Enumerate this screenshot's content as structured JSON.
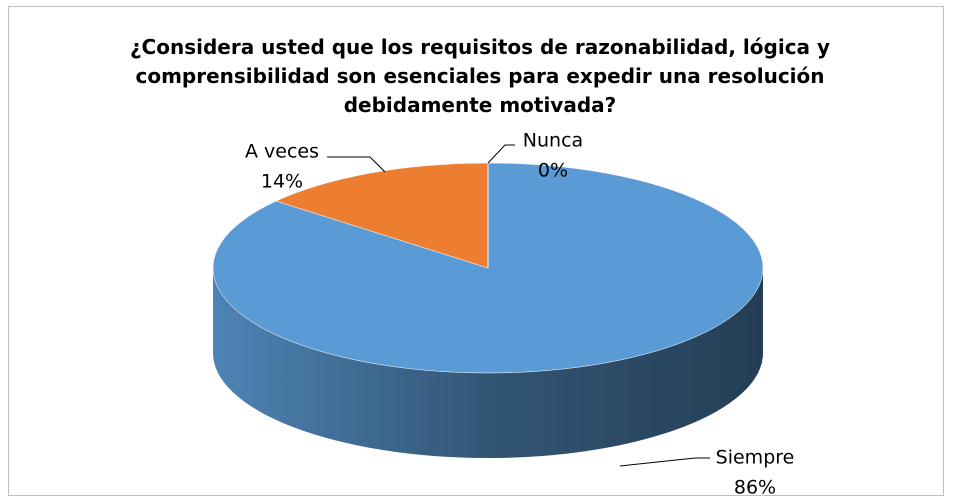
{
  "chart_data": {
    "type": "pie3d",
    "title": "¿Considera usted que los requisitos de razonabilidad,  lógica y comprensibilidad son esenciales  para expedir una resolución debidamente motivada?",
    "categories": [
      "Siempre",
      "A veces",
      "Nunca"
    ],
    "values": [
      86,
      14,
      0
    ],
    "value_labels": [
      "86%",
      "14%",
      "0%"
    ],
    "colors": [
      "#5b9bd5",
      "#ed7d31",
      "#a5a5a5"
    ]
  }
}
